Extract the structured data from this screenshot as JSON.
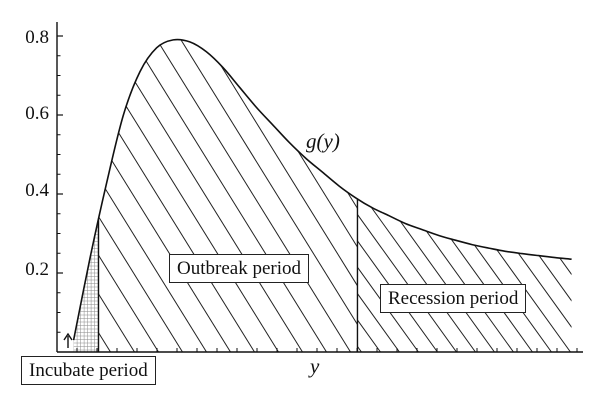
{
  "chart_data": {
    "type": "area",
    "curve_label": "g(y)",
    "xlabel": "y",
    "ylabel": "",
    "ylim": [
      0,
      0.8
    ],
    "yticks": [
      "0.8",
      "0.6",
      "0.4",
      "0.2"
    ],
    "xlim": [
      0,
      6.3
    ],
    "curve": {
      "name": "g(y)",
      "x": [
        0.2,
        0.4,
        0.6,
        0.8,
        1.0,
        1.2,
        1.4,
        1.6,
        1.8,
        2.0,
        2.2,
        2.4,
        2.6,
        2.8,
        3.0,
        3.2,
        3.4,
        3.6,
        3.8,
        4.0,
        4.2,
        4.4,
        4.6,
        4.8,
        5.0,
        5.2,
        5.4,
        5.6,
        5.8,
        6.0,
        6.2
      ],
      "y": [
        0.03,
        0.24,
        0.43,
        0.6,
        0.71,
        0.77,
        0.79,
        0.785,
        0.76,
        0.72,
        0.67,
        0.62,
        0.575,
        0.53,
        0.49,
        0.455,
        0.42,
        0.39,
        0.365,
        0.345,
        0.325,
        0.31,
        0.295,
        0.283,
        0.272,
        0.263,
        0.255,
        0.249,
        0.244,
        0.239,
        0.235
      ]
    },
    "regions": [
      {
        "label": "Incubate period",
        "x_start": 0.2,
        "x_end": 0.5,
        "hatch": "grid"
      },
      {
        "label": "Outbreak period",
        "x_start": 0.5,
        "x_end": 3.62,
        "hatch": "diagonal-dense"
      },
      {
        "label": "Recession period",
        "x_start": 3.62,
        "x_end": 6.2,
        "hatch": "diagonal-sparse"
      }
    ],
    "grid": false,
    "legend": "none"
  },
  "colors": {
    "line": "#111111",
    "hatch": "#222222",
    "grid_hatch": "#8a8a8a",
    "background": "#ffffff"
  }
}
